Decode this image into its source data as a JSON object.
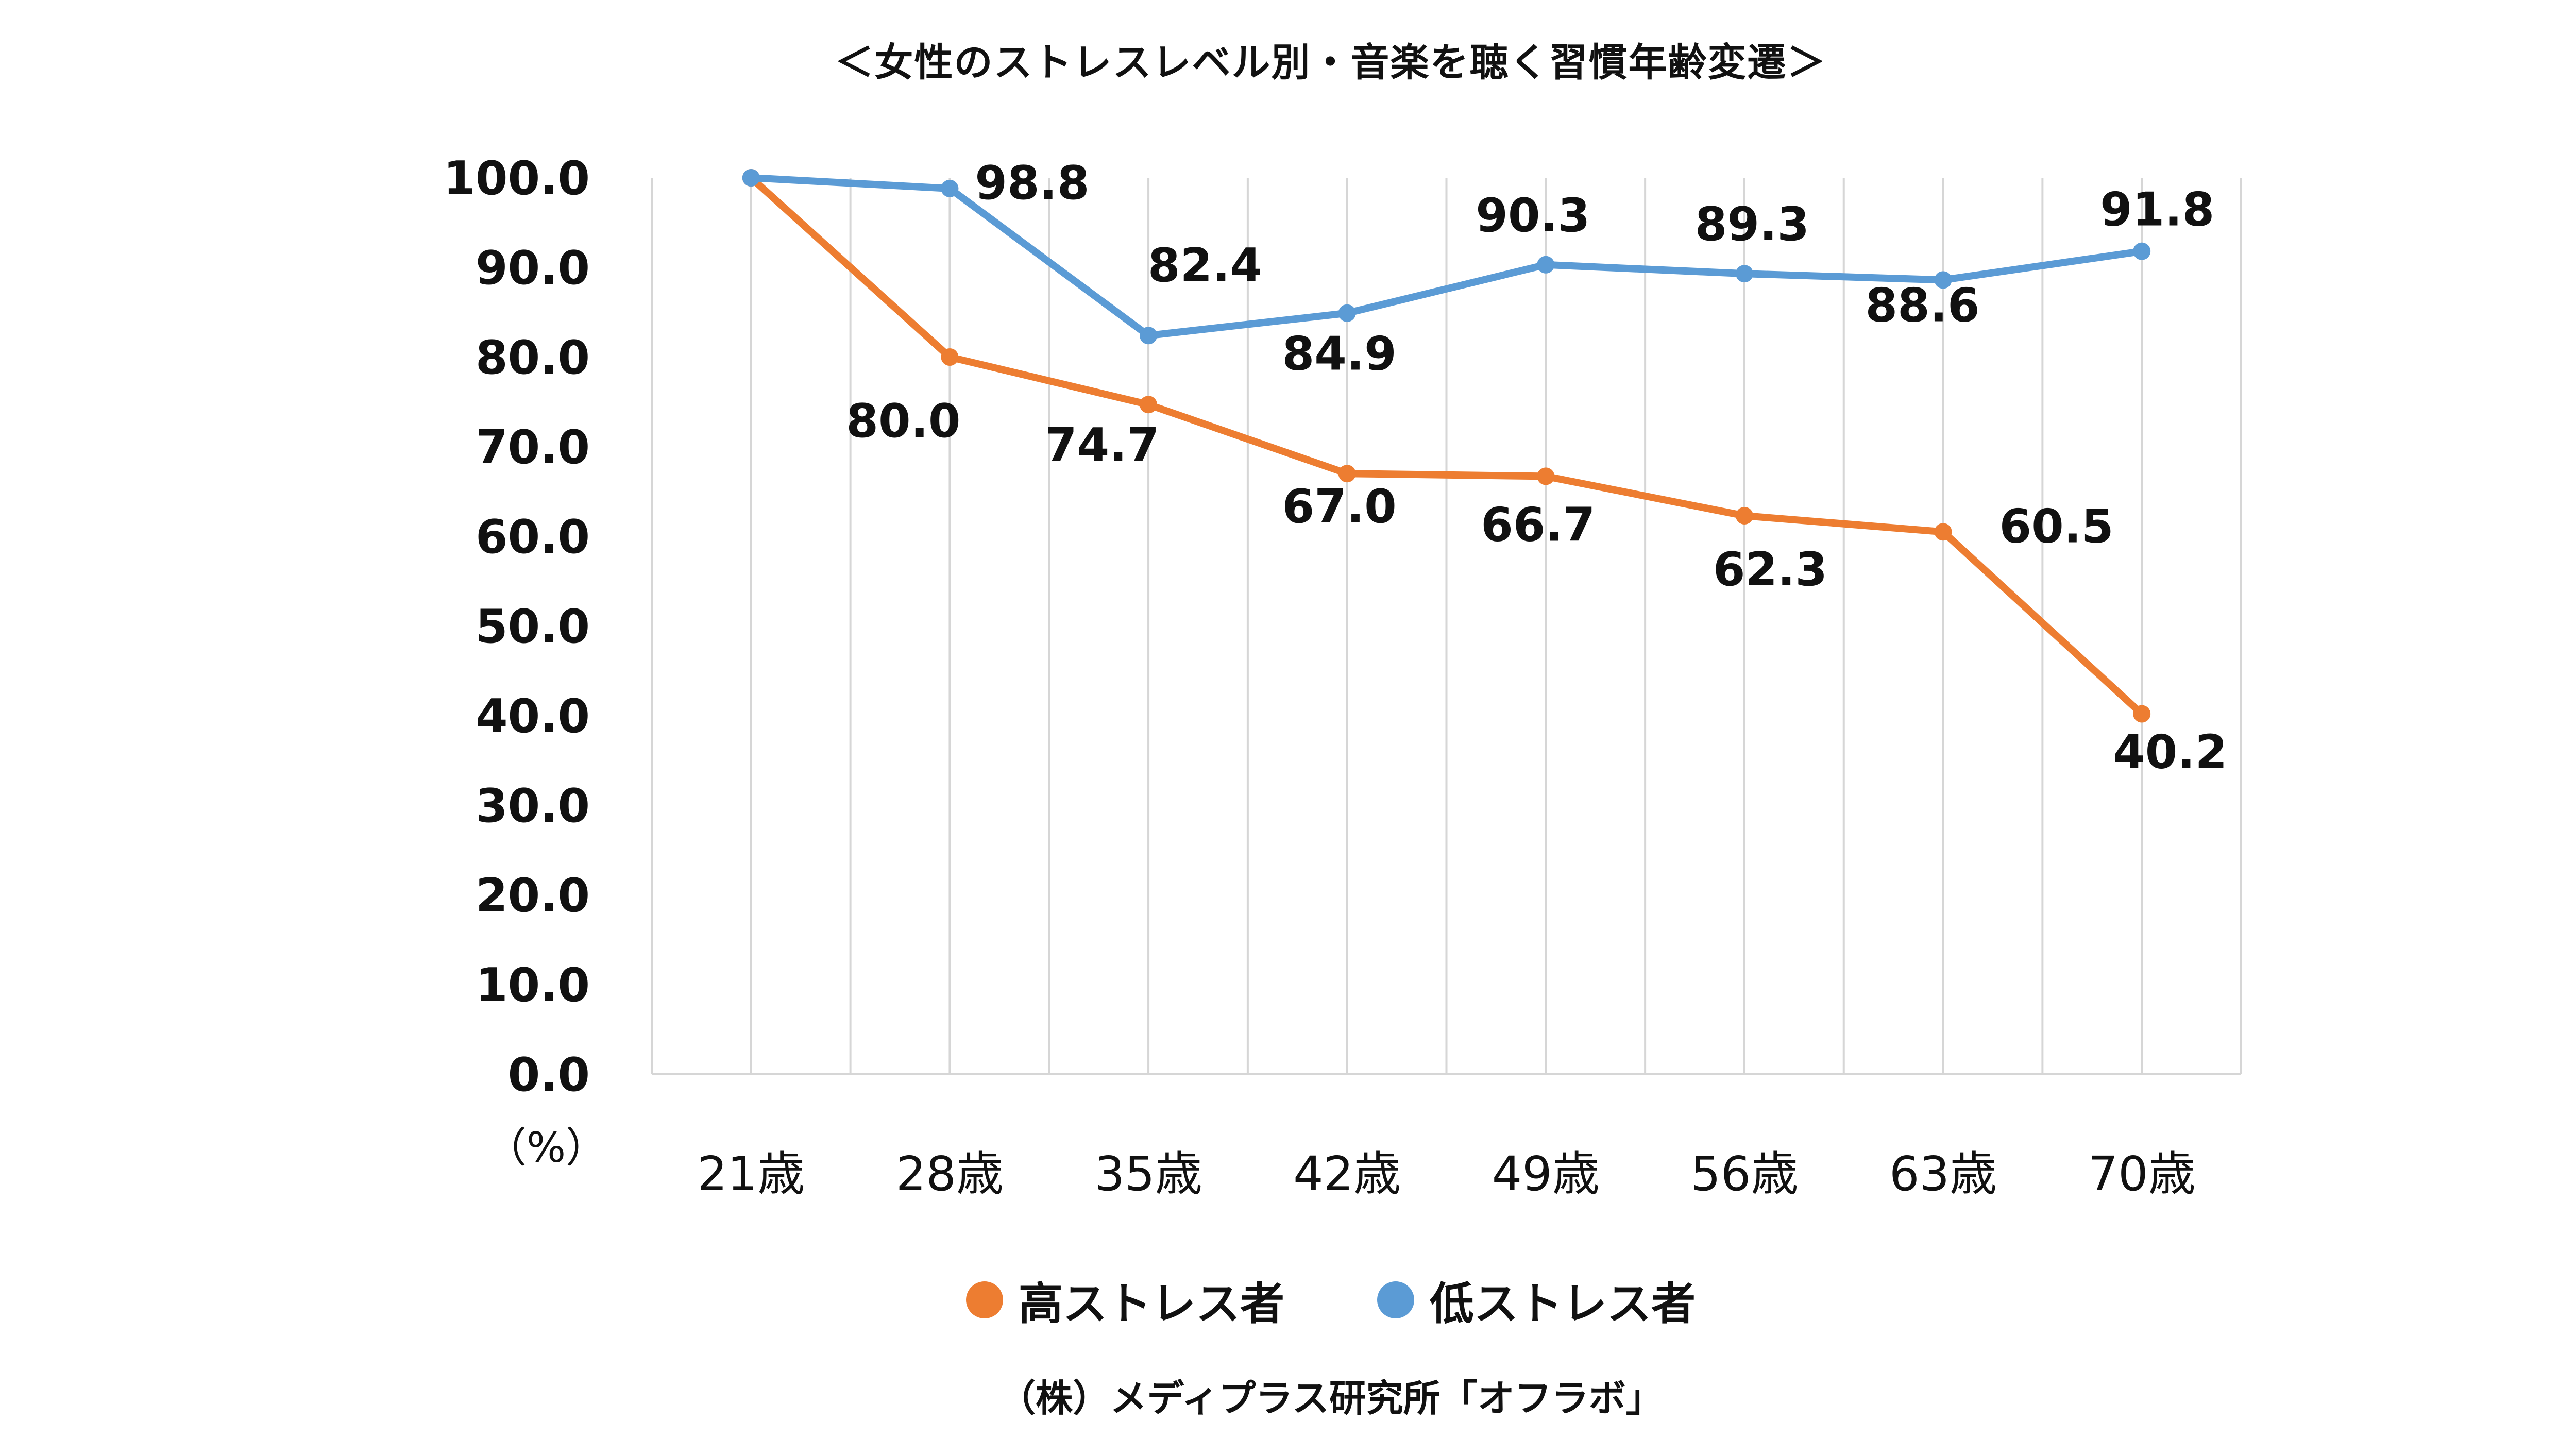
{
  "chart_data": {
    "type": "line",
    "title": "＜女性のストレスレベル別・音楽を聴く習慣年齢変遷＞",
    "unit_label": "（%）",
    "source": "（株）メディプラス研究所「オフラボ」",
    "categories": [
      "21歳",
      "28歳",
      "35歳",
      "42歳",
      "49歳",
      "56歳",
      "63歳",
      "70歳"
    ],
    "ylim": [
      0,
      100
    ],
    "yticks": [
      "0.0",
      "10.0",
      "20.0",
      "30.0",
      "40.0",
      "50.0",
      "60.0",
      "70.0",
      "80.0",
      "90.0",
      "100.0"
    ],
    "grid": "vertical",
    "legend_position": "bottom",
    "series": [
      {
        "name": "高ストレス者",
        "color": "#ED7D31",
        "values": [
          100.0,
          80.0,
          74.7,
          67.0,
          66.7,
          62.3,
          60.5,
          40.2
        ],
        "labels": [
          "",
          "80.0",
          "74.7",
          "67.0",
          "66.7",
          "62.3",
          "60.5",
          "40.2"
        ]
      },
      {
        "name": "低ストレス者",
        "color": "#5B9BD5",
        "values": [
          100.0,
          98.8,
          82.4,
          84.9,
          90.3,
          89.3,
          88.6,
          91.8
        ],
        "labels": [
          "",
          "98.8",
          "82.4",
          "84.9",
          "90.3",
          "89.3",
          "88.6",
          "91.8"
        ]
      }
    ]
  }
}
